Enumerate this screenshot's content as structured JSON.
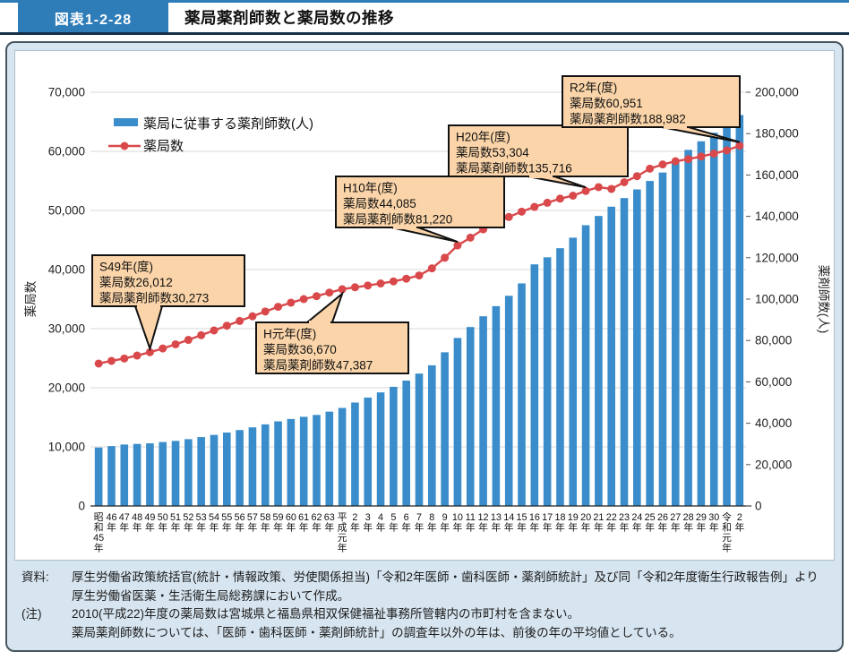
{
  "header": {
    "figure_label": "図表1-2-28",
    "title": "薬局薬剤師数と薬局数の推移"
  },
  "colors": {
    "bar_blue": "#3a8dca",
    "line_red": "#d9494b",
    "callout_bg": "#fbd5a9",
    "callout_border": "#111111",
    "panel_bg": "#d7e5f0",
    "header_blue": "#2e7cb8",
    "gridline": "#d9d9d9"
  },
  "legend": {
    "bar_label": "薬局に従事する薬剤師数(人)",
    "line_label": "薬局数"
  },
  "chart_data": {
    "type": "bar",
    "title": "薬局薬剤師数と薬局数の推移",
    "categories": [
      "昭和45年",
      "46年",
      "47年",
      "48年",
      "49年",
      "50年",
      "51年",
      "52年",
      "53年",
      "54年",
      "55年",
      "56年",
      "57年",
      "58年",
      "59年",
      "60年",
      "61年",
      "62年",
      "63年",
      "平成元年",
      "2年",
      "3年",
      "4年",
      "5年",
      "6年",
      "7年",
      "8年",
      "9年",
      "10年",
      "11年",
      "12年",
      "13年",
      "14年",
      "15年",
      "16年",
      "17年",
      "18年",
      "19年",
      "20年",
      "21年",
      "22年",
      "23年",
      "24年",
      "25年",
      "26年",
      "27年",
      "28年",
      "29年",
      "30年",
      "令和元年",
      "2年"
    ],
    "series": [
      {
        "name": "薬局に従事する薬剤師数(人)",
        "type": "bar",
        "axis": "right",
        "color": "#3a8dca",
        "values": [
          28250,
          28950,
          29700,
          30000,
          30273,
          30900,
          31450,
          32300,
          33300,
          34350,
          35500,
          36700,
          38000,
          39450,
          40900,
          42050,
          43100,
          44000,
          45600,
          47387,
          50000,
          52400,
          54900,
          57600,
          60600,
          64000,
          68000,
          74300,
          81220,
          86500,
          91700,
          96600,
          101600,
          107600,
          116800,
          120200,
          124600,
          129700,
          135716,
          140195,
          144674,
          148843,
          153012,
          157105,
          161198,
          166670,
          172142,
          176279,
          180415,
          184699,
          188982
        ]
      },
      {
        "name": "薬局数",
        "type": "line",
        "axis": "left",
        "color": "#d9494b",
        "values": [
          24100,
          24550,
          24950,
          25450,
          26012,
          26650,
          27350,
          28100,
          28900,
          29700,
          30500,
          31300,
          32100,
          32900,
          33700,
          34400,
          35000,
          35500,
          36100,
          36670,
          37000,
          37300,
          37650,
          38000,
          38450,
          39000,
          40200,
          42000,
          44085,
          45400,
          46800,
          47900,
          48900,
          49800,
          50600,
          51300,
          52000,
          52500,
          53304,
          53946,
          53642,
          54780,
          55797,
          57071,
          57784,
          58326,
          58678,
          59138,
          59613,
          60171,
          60951
        ]
      }
    ],
    "left_axis": {
      "title": "薬局数",
      "min": 0,
      "max": 70000,
      "step": 10000
    },
    "right_axis": {
      "title": "薬剤師数(人)",
      "min": 0,
      "max": 200000,
      "step": 20000
    },
    "grid": "horizontal",
    "legend_position": "top-left"
  },
  "callouts": [
    {
      "lines": [
        "S49年(度)",
        "薬局数26,012",
        "薬局薬剤師数30,273"
      ],
      "year_index": 4,
      "dir": "down"
    },
    {
      "lines": [
        "H元年(度)",
        "薬局数36,670",
        "薬局薬剤師数47,387"
      ],
      "year_index": 19,
      "dir": "up"
    },
    {
      "lines": [
        "H10年(度)",
        "薬局数44,085",
        "薬局薬剤師数81,220"
      ],
      "year_index": 28,
      "dir": "down"
    },
    {
      "lines": [
        "H20年(度)",
        "薬局数53,304",
        "薬局薬剤師数135,716"
      ],
      "year_index": 38,
      "dir": "down"
    },
    {
      "lines": [
        "R2年(度)",
        "薬局数60,951",
        "薬局薬剤師数188,982"
      ],
      "year_index": 50,
      "dir": "down"
    }
  ],
  "notes": {
    "source_label": "資料:",
    "source": "厚生労働省政策統括官(統計・情報政策、労使関係担当)「令和2年医師・歯科医師・薬剤師統計」及び同「令和2年度衛生行政報告例」より厚生労働省医薬・生活衛生局総務課において作成。",
    "note_label": "(注)",
    "note_lines": [
      "2010(平成22)年度の薬局数は宮城県と福島県相双保健福祉事務所管轄内の市町村を含まない。",
      "薬局薬剤師数については、「医師・歯科医師・薬剤師統計」の調査年以外の年は、前後の年の平均値としている。"
    ]
  }
}
